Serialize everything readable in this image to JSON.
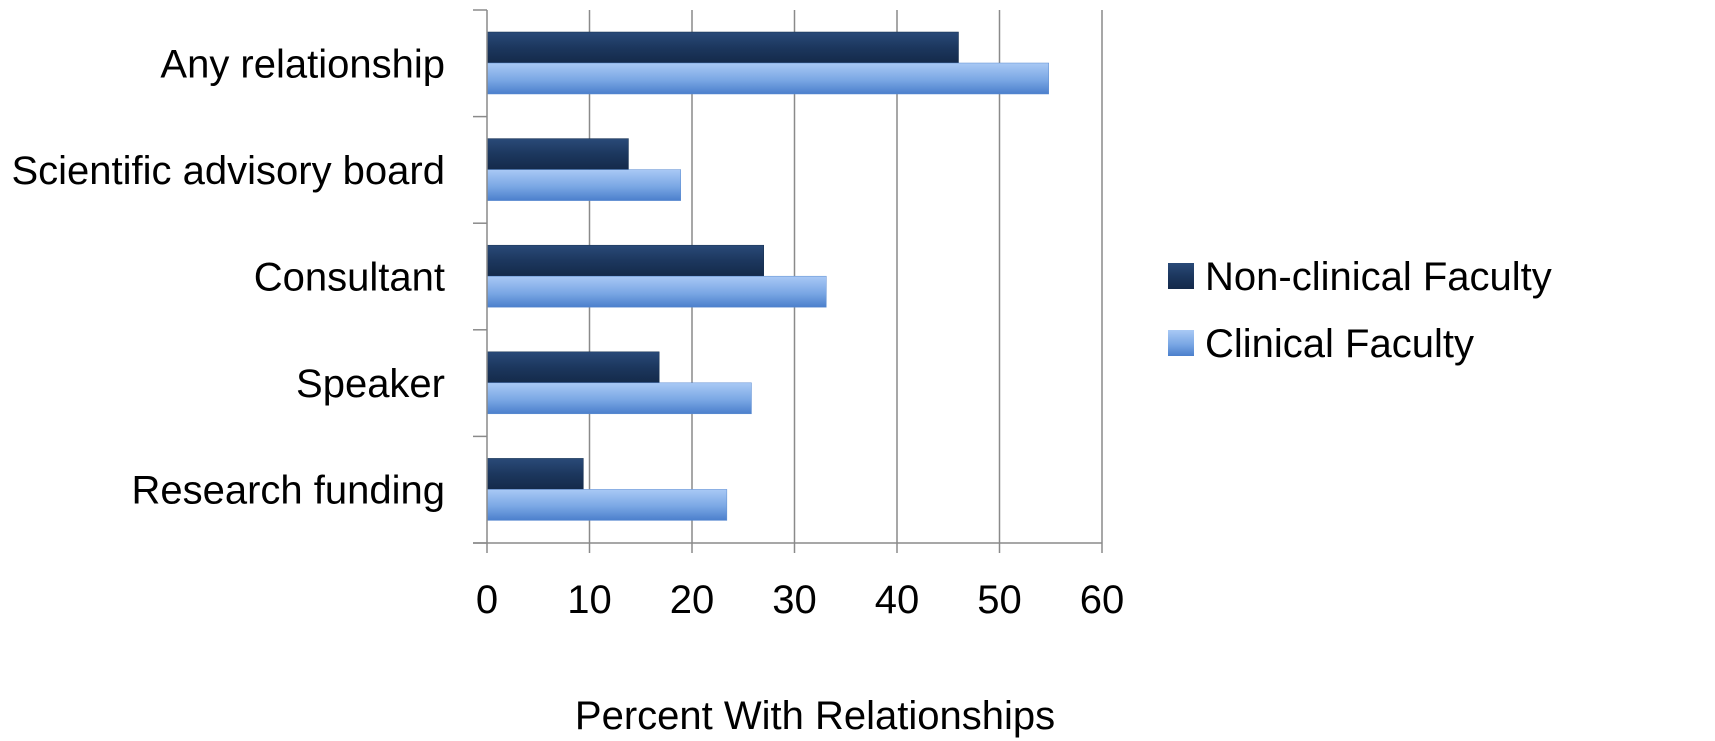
{
  "chart_data": {
    "type": "bar",
    "orientation": "horizontal",
    "categories": [
      "Any relationship",
      "Scientific advisory board",
      "Consultant",
      "Speaker",
      "Research funding"
    ],
    "series": [
      {
        "name": "Non-clinical Faculty",
        "values": [
          46,
          13.8,
          27,
          16.8,
          9.4
        ],
        "color": "#1c375e"
      },
      {
        "name": "Clinical Faculty",
        "values": [
          54.8,
          18.9,
          33.1,
          25.8,
          23.4
        ],
        "color": "#7aa7e4"
      }
    ],
    "xlabel": "Percent With Relationships",
    "xlim": [
      0,
      60
    ],
    "xticks": [
      "0",
      "10",
      "20",
      "30",
      "40",
      "50",
      "60"
    ],
    "grid": "vertical gridlines",
    "legend": "right"
  }
}
